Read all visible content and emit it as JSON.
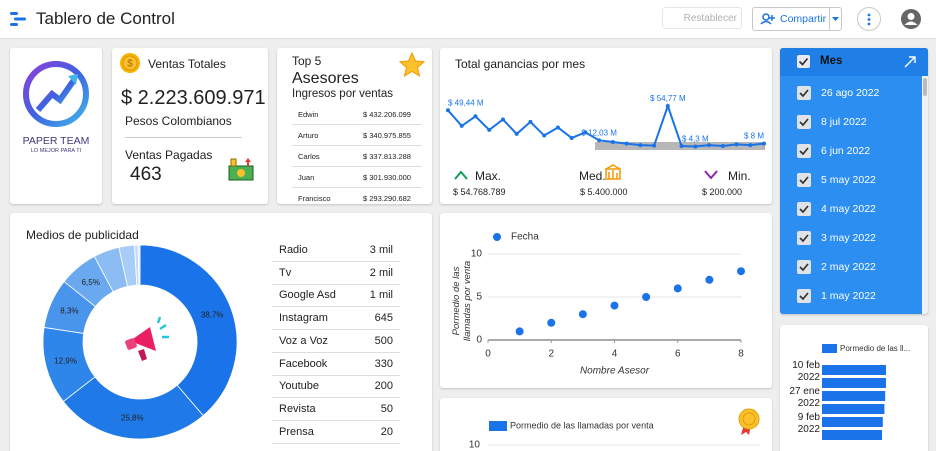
{
  "header": {
    "title": "Tablero de Control",
    "reset": "Restablecer",
    "share": "Compartir"
  },
  "logo": {
    "name": "PAPER TEAM",
    "slogan": "LO MEJOR PARA TI"
  },
  "sales": {
    "title": "Ventas Totales",
    "total": "$ 2.223.609.971",
    "currency": "Pesos Colombianos",
    "paid_title": "Ventas Pagadas",
    "paid": "463"
  },
  "top5": {
    "title": "Top 5",
    "subtitle": "Asesores",
    "caption": "Ingresos por ventas",
    "rows": [
      [
        "Edwin",
        "$ 432.206.099"
      ],
      [
        "Arturo",
        "$ 340.975.855"
      ],
      [
        "Carlos",
        "$ 337.813.288"
      ],
      [
        "Juan",
        "$ 301.930.000"
      ],
      [
        "Francisco",
        "$ 293.290.682"
      ]
    ]
  },
  "profit": {
    "title": "Total ganancias por mes",
    "stats": [
      {
        "label": "Max.",
        "value": "$ 54.768.789"
      },
      {
        "label": "Med.",
        "value": "$ 5.400.000"
      },
      {
        "label": "Min.",
        "value": "$ 200.000"
      }
    ]
  },
  "filter": {
    "title": "Mes",
    "items": [
      "26 ago 2022",
      "8 jul 2022",
      "6 jun 2022",
      "5 may 2022",
      "4 may 2022",
      "3 may 2022",
      "2 may 2022",
      "1 may 2022"
    ]
  },
  "media": {
    "title": "Medios de publicidad",
    "rows": [
      [
        "Radio",
        "3 mil"
      ],
      [
        "Tv",
        "2 mil"
      ],
      [
        "Google Asd",
        "1 mil"
      ],
      [
        "Instagram",
        "645"
      ],
      [
        "Voz a Voz",
        "500"
      ],
      [
        "Facebook",
        "330"
      ],
      [
        "Youtube",
        "200"
      ],
      [
        "Revista",
        "50"
      ],
      [
        "Prensa",
        "20"
      ]
    ]
  },
  "chart_data": [
    {
      "type": "pie",
      "donut": true,
      "values": [
        38.7,
        25.8,
        12.9,
        8.3,
        6.5,
        4.3,
        2.6,
        0.6,
        0.3
      ],
      "value_labels": [
        "38,7%",
        "25,8%",
        "12,9%",
        "8,3%",
        "6,5%",
        null,
        null,
        null,
        null
      ],
      "colors": [
        "#1a73e8",
        "#1f7ae8",
        "#2f86ea",
        "#4a95ec",
        "#6aa8f0",
        "#8bbcf3",
        "#a9cdf6",
        "#c3dcf8",
        "#d8e8fa"
      ]
    },
    {
      "type": "line",
      "color": "#1a73e8",
      "values": [
        49.44,
        30,
        42,
        25,
        38,
        20,
        35,
        18,
        28,
        15,
        22,
        12.03,
        10,
        8,
        6,
        5.4,
        54.77,
        5,
        4.3,
        6,
        5,
        7,
        6,
        8
      ],
      "value_labels": [
        "$ 49,44 M",
        null,
        null,
        null,
        null,
        null,
        null,
        null,
        null,
        null,
        null,
        "$ 12,03 M",
        null,
        null,
        null,
        null,
        "$ 54,77 M",
        null,
        "$ 4,3 M",
        null,
        null,
        null,
        null,
        "$ 8 M"
      ]
    },
    {
      "type": "scatter",
      "xlabel": "Nombre Asesor",
      "ylabel": "Pormedio de las llamadas por venta",
      "series": [
        {
          "name": "Fecha",
          "color": "#1a73e8",
          "x": [
            1,
            2,
            3,
            4,
            5,
            6,
            7,
            8
          ],
          "values": [
            1,
            2,
            3,
            4,
            5,
            6,
            7,
            8
          ]
        }
      ],
      "xlim": [
        0,
        8
      ],
      "ylim": [
        0,
        10
      ],
      "xticks": [
        0,
        2,
        4,
        6,
        8
      ],
      "yticks": [
        0,
        5,
        10
      ],
      "grid": true
    },
    {
      "type": "bar",
      "series": [
        {
          "name": "Pormedio de las llamadas por venta",
          "color": "#1a73e8"
        }
      ],
      "yticks": [
        10
      ],
      "grid": true
    },
    {
      "type": "hbar",
      "categories": [
        "10 feb 2022",
        null,
        "27 ene 2022",
        null,
        "9 feb 2022",
        null
      ],
      "series": [
        {
          "name": "Pormedio de las ll...",
          "color": "#1a73e8",
          "values": [
            8,
            8,
            7.9,
            7.8,
            7.6,
            7.5
          ]
        }
      ]
    }
  ]
}
